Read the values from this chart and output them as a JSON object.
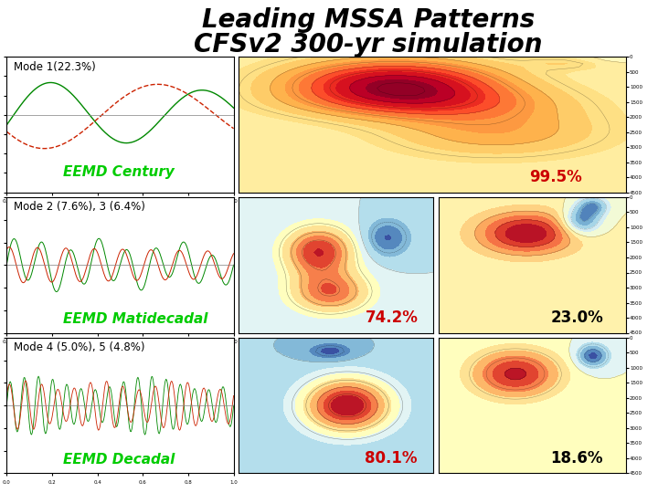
{
  "title_line1": "Leading MSSA Patterns",
  "title_line2": "CFSv2 300-yr simulation",
  "title_fontsize": 20,
  "background_color": "#ffffff",
  "row_labels": [
    "Mode 1(22.3%)",
    "Mode 2 (7.6%), 3 (6.4%)",
    "Mode 4 (5.0%), 5 (4.8%)"
  ],
  "eemd_labels": [
    "EEMD Century",
    "EEMD Matidecadal",
    "EEMD Decadal"
  ],
  "eemd_label_color": "#00cc00",
  "eemd_label_fontsize": 11,
  "pct_labels_col1": [
    "99.5%",
    "74.2%",
    "80.1%"
  ],
  "pct_labels_col2": [
    "23.0%",
    "18.6%"
  ],
  "pct_color_red": "#cc0000",
  "pct_color_black": "#000000",
  "pct_fontsize": 12,
  "panel_border_color": "#000000",
  "line_color_green": "#008800",
  "line_color_red": "#cc2200"
}
